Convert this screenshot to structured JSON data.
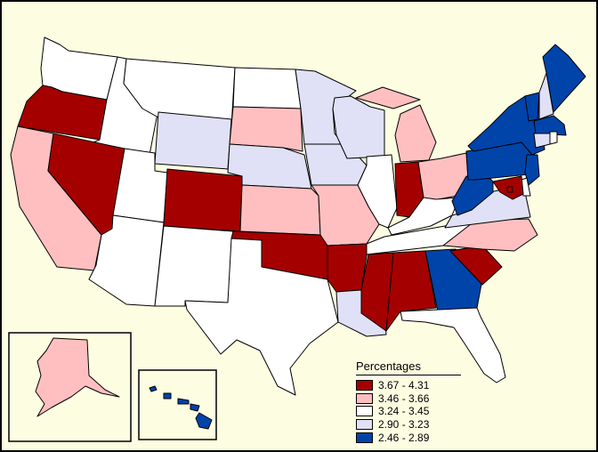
{
  "legend": {
    "title": "Percentages",
    "classes": [
      {
        "label": "3.67 - 4.31",
        "color": "#a50000"
      },
      {
        "label": "3.46 - 3.66",
        "color": "#ffbfc0"
      },
      {
        "label": "3.24 - 3.45",
        "color": "#ffffff"
      },
      {
        "label": "2.90 - 3.23",
        "color": "#e0e1f6"
      },
      {
        "label": "2.46 - 2.89",
        "color": "#0044aa"
      }
    ]
  },
  "colors": {
    "background": "#fdfde2",
    "border": "#000000"
  },
  "states": {
    "washington": 2,
    "oregon": 0,
    "california": 1,
    "idaho": 2,
    "nevada": 0,
    "montana": 2,
    "wyoming": 3,
    "utah": 2,
    "arizona": 2,
    "colorado": 0,
    "new_mexico": 2,
    "north_dakota": 2,
    "south_dakota": 1,
    "nebraska": 3,
    "kansas": 1,
    "oklahoma": 0,
    "texas": 2,
    "minnesota": 3,
    "iowa": 3,
    "missouri": 1,
    "arkansas": 0,
    "louisiana": 3,
    "wisconsin": 3,
    "illinois": 2,
    "michigan": 1,
    "indiana": 0,
    "ohio": 1,
    "kentucky": 2,
    "tennessee": 2,
    "mississippi": 0,
    "alabama": 0,
    "georgia": 4,
    "florida": 2,
    "south_carolina": 0,
    "north_carolina": 1,
    "virginia": 3,
    "west_virginia": 4,
    "pennsylvania": 4,
    "new_york": 4,
    "vermont": 4,
    "new_hampshire": 3,
    "maine": 4,
    "massachusetts": 4,
    "connecticut": 3,
    "rhode_island": 2,
    "new_jersey": 4,
    "delaware": 2,
    "maryland": 0,
    "district_of_columbia": 0,
    "alaska": 1,
    "hawaii": 4
  }
}
